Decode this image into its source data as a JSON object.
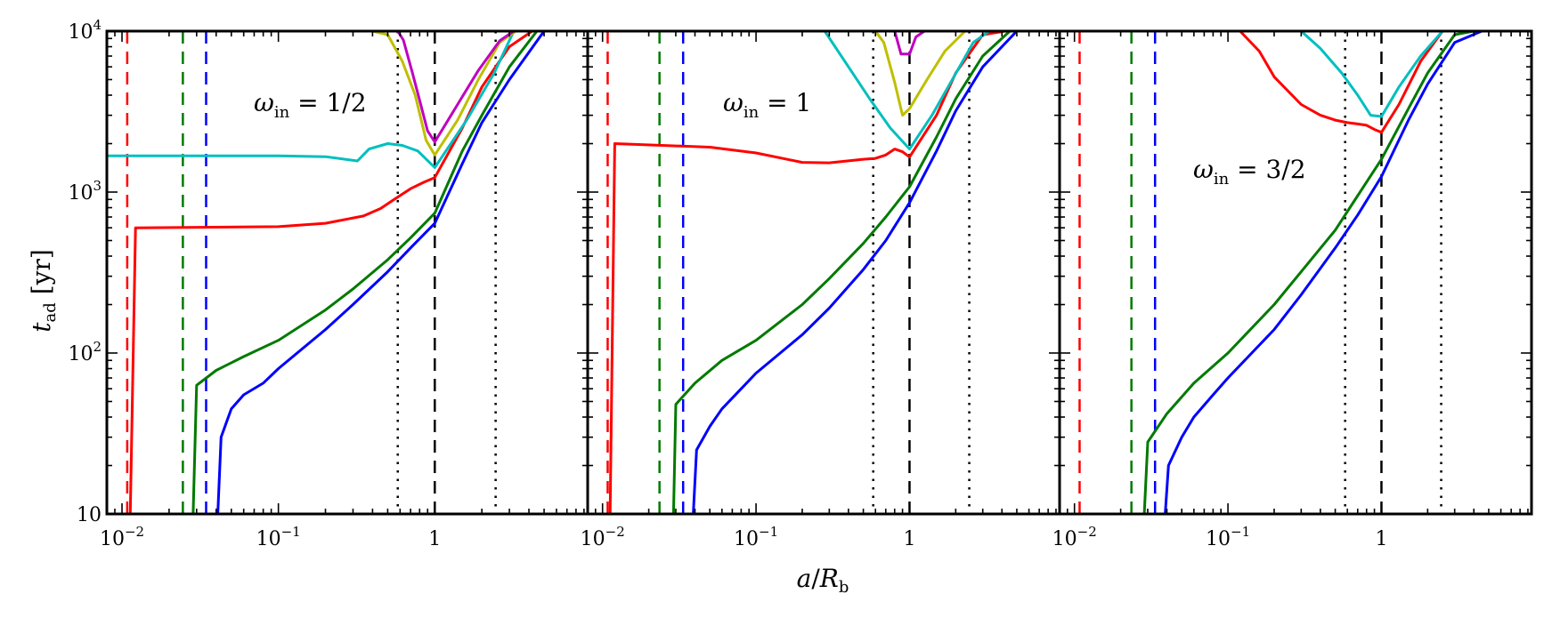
{
  "chart_data": {
    "type": "line",
    "xscale": "log",
    "yscale": "log",
    "xlim": [
      0.008,
      9.5
    ],
    "ylim": [
      10,
      10000
    ],
    "xlabel": "a/R_b",
    "ylabel": "t_ad [yr]",
    "xticks": [
      {
        "value": 0.01,
        "base": "10",
        "exp": "−2"
      },
      {
        "value": 0.1,
        "base": "10",
        "exp": "−1"
      },
      {
        "value": 1,
        "base": "1",
        "exp": ""
      }
    ],
    "yticks": [
      {
        "value": 10,
        "base": "10",
        "exp": ""
      },
      {
        "value": 100,
        "base": "10",
        "exp": "2"
      },
      {
        "value": 1000,
        "base": "10",
        "exp": "3"
      },
      {
        "value": 10000,
        "base": "10",
        "exp": "4"
      }
    ],
    "colors": {
      "red": "#ff0000",
      "green": "#007a00",
      "blue": "#0000ff",
      "cyan": "#00bfbf",
      "magenta": "#bf00bf",
      "olive": "#bfbf00",
      "black": "#000000"
    },
    "panels": [
      {
        "annotation": {
          "main": "ω",
          "sub": "in",
          "rest": " = 1/2"
        },
        "vlines_dashed": [
          {
            "x": 0.0108,
            "color": "red"
          },
          {
            "x": 0.0245,
            "color": "green"
          },
          {
            "x": 0.0345,
            "color": "blue"
          },
          {
            "x": 1.0,
            "color": "black"
          }
        ],
        "vlines_dotted": [
          0.58,
          2.45
        ],
        "series": [
          {
            "name": "red",
            "color": "red",
            "x": [
              0.0113,
              0.0122,
              0.1,
              0.2,
              0.35,
              0.45,
              0.55,
              0.7,
              0.85,
              1.0,
              1.5,
              2.0,
              3.0,
              4.2
            ],
            "y": [
              10,
              600,
              610,
              640,
              710,
              790,
              900,
              1050,
              1150,
              1230,
              2500,
              4500,
              8000,
              10000
            ]
          },
          {
            "name": "green",
            "color": "green",
            "x": [
              0.0285,
              0.03,
              0.04,
              0.06,
              0.1,
              0.2,
              0.3,
              0.5,
              0.7,
              1.0,
              1.5,
              2.0,
              3.0,
              4.5
            ],
            "y": [
              10,
              63,
              78,
              95,
              120,
              185,
              250,
              380,
              520,
              740,
              1800,
              3000,
              6000,
              10000
            ]
          },
          {
            "name": "blue",
            "color": "blue",
            "x": [
              0.041,
              0.043,
              0.05,
              0.06,
              0.08,
              0.1,
              0.2,
              0.3,
              0.5,
              0.7,
              1.0,
              1.5,
              2.0,
              3.0,
              5.0
            ],
            "y": [
              10,
              30,
              45,
              55,
              65,
              80,
              140,
              200,
              320,
              450,
              640,
              1500,
              2700,
              5000,
              10000
            ]
          },
          {
            "name": "cyan",
            "color": "cyan",
            "x": [
              0.008,
              0.1,
              0.2,
              0.32,
              0.38,
              0.5,
              0.62,
              0.78,
              1.0,
              1.6,
              2.4,
              3.2
            ],
            "y": [
              1680,
              1680,
              1660,
              1560,
              1850,
              2000,
              1950,
              1800,
              1420,
              2800,
              5500,
              10000
            ]
          },
          {
            "name": "olive",
            "color": "olive",
            "x": [
              0.4,
              0.5,
              0.62,
              0.75,
              0.88,
              1.0,
              1.4,
              1.9,
              2.6,
              3.3
            ],
            "y": [
              10000,
              9500,
              6500,
              4000,
              2100,
              1700,
              2800,
              5000,
              8500,
              10000
            ]
          },
          {
            "name": "magenta",
            "color": "magenta",
            "x": [
              0.58,
              0.63,
              0.72,
              0.82,
              0.9,
              1.0,
              1.4,
              1.9,
              2.6,
              3.2
            ],
            "y": [
              10000,
              8800,
              5500,
              3400,
              2400,
              2050,
              3500,
              5700,
              8700,
              10000
            ]
          }
        ]
      },
      {
        "annotation": {
          "main": "ω",
          "sub": "in",
          "rest": " = 1"
        },
        "vlines_dashed": [
          {
            "x": 0.0108,
            "color": "red"
          },
          {
            "x": 0.0235,
            "color": "green"
          },
          {
            "x": 0.0335,
            "color": "blue"
          },
          {
            "x": 1.0,
            "color": "black"
          }
        ],
        "vlines_dotted": [
          0.58,
          2.45
        ],
        "series": [
          {
            "name": "red",
            "color": "red",
            "x": [
              0.0112,
              0.012,
              0.05,
              0.1,
              0.2,
              0.3,
              0.5,
              0.6,
              0.7,
              0.8,
              0.9,
              1.0,
              1.5,
              2.0,
              3.0,
              4.2
            ],
            "y": [
              10,
              2000,
              1900,
              1750,
              1530,
              1520,
              1600,
              1620,
              1700,
              1850,
              1780,
              1650,
              3000,
              5500,
              9500,
              10000
            ]
          },
          {
            "name": "green",
            "color": "green",
            "x": [
              0.029,
              0.03,
              0.04,
              0.06,
              0.1,
              0.2,
              0.3,
              0.5,
              0.7,
              1.0,
              1.5,
              2.0,
              3.0,
              4.5
            ],
            "y": [
              10,
              48,
              65,
              90,
              120,
              200,
              290,
              480,
              700,
              1080,
              2200,
              3800,
              7000,
              10000
            ]
          },
          {
            "name": "blue",
            "color": "blue",
            "x": [
              0.039,
              0.041,
              0.05,
              0.06,
              0.08,
              0.1,
              0.2,
              0.3,
              0.5,
              0.7,
              1.0,
              1.5,
              2.0,
              3.0,
              5.0
            ],
            "y": [
              10,
              25,
              35,
              45,
              60,
              75,
              130,
              190,
              330,
              500,
              860,
              1800,
              3200,
              6000,
              10000
            ]
          },
          {
            "name": "cyan",
            "color": "cyan",
            "x": [
              0.28,
              0.4,
              0.55,
              0.75,
              1.0,
              1.4,
              1.9,
              2.6,
              3.3
            ],
            "y": [
              10000,
              6000,
              3800,
              2500,
              1850,
              3000,
              5000,
              8500,
              10000
            ]
          },
          {
            "name": "olive",
            "color": "olive",
            "x": [
              0.6,
              0.68,
              0.8,
              0.9,
              1.0,
              1.3,
              1.7,
              2.3
            ],
            "y": [
              10000,
              8500,
              4800,
              3000,
              3300,
              5000,
              7500,
              10000
            ]
          },
          {
            "name": "magenta",
            "color": "magenta",
            "x": [
              0.8,
              0.88,
              1.0,
              1.1,
              1.25
            ],
            "y": [
              10000,
              7200,
              7200,
              9200,
              10000
            ]
          }
        ]
      },
      {
        "annotation": {
          "main": "ω",
          "sub": "in",
          "rest": " = 3/2"
        },
        "vlines_dashed": [
          {
            "x": 0.0108,
            "color": "red"
          },
          {
            "x": 0.0235,
            "color": "green"
          },
          {
            "x": 0.0335,
            "color": "blue"
          },
          {
            "x": 1.0,
            "color": "black"
          }
        ],
        "vlines_dotted": [
          0.58,
          2.45
        ],
        "series": [
          {
            "name": "red",
            "color": "red",
            "x": [
              0.12,
              0.16,
              0.2,
              0.3,
              0.4,
              0.5,
              0.6,
              0.7,
              0.8,
              0.9,
              1.0,
              1.3,
              1.8,
              2.5
            ],
            "y": [
              10000,
              7500,
              5200,
              3500,
              3000,
              2800,
              2700,
              2650,
              2600,
              2450,
              2350,
              3500,
              6500,
              10000
            ]
          },
          {
            "name": "green",
            "color": "green",
            "x": [
              0.0285,
              0.03,
              0.04,
              0.06,
              0.1,
              0.2,
              0.3,
              0.5,
              0.7,
              1.0,
              1.5,
              2.0,
              3.0,
              4.0
            ],
            "y": [
              10,
              28,
              42,
              65,
              100,
              200,
              320,
              580,
              950,
              1600,
              3300,
              5500,
              9500,
              10000
            ]
          },
          {
            "name": "blue",
            "color": "blue",
            "x": [
              0.039,
              0.041,
              0.05,
              0.06,
              0.08,
              0.1,
              0.2,
              0.3,
              0.5,
              0.7,
              1.0,
              1.5,
              2.0,
              3.0,
              4.5
            ],
            "y": [
              10,
              20,
              30,
              40,
              55,
              70,
              140,
              230,
              450,
              720,
              1250,
              2800,
              4700,
              8500,
              10000
            ]
          },
          {
            "name": "cyan",
            "color": "cyan",
            "x": [
              0.3,
              0.4,
              0.55,
              0.7,
              0.85,
              1.0,
              1.3,
              1.8,
              2.5,
              3.0
            ],
            "y": [
              10000,
              7800,
              5500,
              4000,
              3000,
              2950,
              4500,
              7000,
              10000,
              10000
            ]
          }
        ]
      }
    ]
  }
}
